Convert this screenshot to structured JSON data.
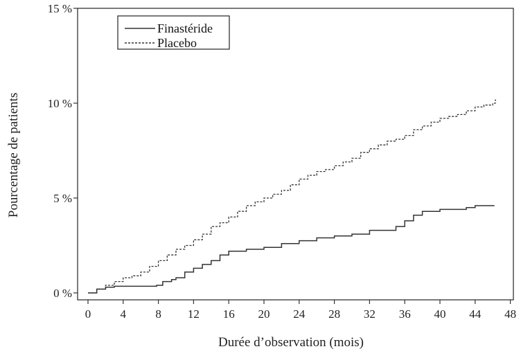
{
  "chart_data": {
    "type": "line",
    "title": "",
    "xlabel": "Durée d’observation (mois)",
    "ylabel": "Pourcentage de patients",
    "xlim": [
      0,
      48
    ],
    "ylim": [
      0,
      15
    ],
    "x_ticks": [
      "0",
      "4",
      "8",
      "12",
      "16",
      "20",
      "24",
      "28",
      "32",
      "36",
      "40",
      "44",
      "48"
    ],
    "x_tick_values": [
      0,
      4,
      8,
      12,
      16,
      20,
      24,
      28,
      32,
      36,
      40,
      44,
      48
    ],
    "y_ticks": [
      "0 %",
      "5 %",
      "10 %",
      "15 %"
    ],
    "y_tick_values": [
      0,
      5,
      10,
      15
    ],
    "grid": false,
    "legend_position": "top-left",
    "series": [
      {
        "name": "Finastéride",
        "style": "solid",
        "color": "#333333",
        "x": [
          0,
          1,
          2,
          3,
          4,
          5,
          6,
          7,
          7.8,
          8.5,
          9.5,
          10,
          11,
          12,
          13,
          14,
          15,
          16,
          17,
          18,
          20,
          22,
          24,
          26,
          28,
          30,
          32,
          34,
          35,
          36,
          37,
          38,
          40,
          42,
          43,
          44,
          46.2
        ],
        "y": [
          0,
          0.2,
          0.3,
          0.35,
          0.35,
          0.35,
          0.35,
          0.35,
          0.4,
          0.6,
          0.7,
          0.8,
          1.1,
          1.3,
          1.5,
          1.7,
          2.0,
          2.2,
          2.2,
          2.3,
          2.4,
          2.6,
          2.75,
          2.9,
          3.0,
          3.1,
          3.3,
          3.3,
          3.5,
          3.8,
          4.1,
          4.3,
          4.4,
          4.4,
          4.5,
          4.6,
          4.6
        ]
      },
      {
        "name": "Placebo",
        "style": "dashed",
        "color": "#333333",
        "x": [
          0,
          1,
          2,
          3,
          4,
          5,
          6,
          7,
          8,
          9,
          10,
          11,
          12,
          13,
          14,
          15,
          16,
          17,
          18,
          19,
          20,
          21,
          22,
          23,
          24,
          25,
          26,
          27,
          28,
          29,
          30,
          31,
          32,
          33,
          34,
          35,
          36,
          37,
          38,
          39,
          40,
          41,
          42,
          43,
          44,
          45,
          46,
          46.3
        ],
        "y": [
          0,
          0.2,
          0.4,
          0.6,
          0.8,
          0.9,
          1.1,
          1.4,
          1.7,
          2.0,
          2.3,
          2.5,
          2.8,
          3.1,
          3.5,
          3.7,
          4.0,
          4.3,
          4.6,
          4.8,
          5.0,
          5.2,
          5.4,
          5.7,
          6.0,
          6.2,
          6.4,
          6.5,
          6.7,
          6.9,
          7.1,
          7.4,
          7.6,
          7.8,
          8.0,
          8.1,
          8.3,
          8.6,
          8.8,
          9.0,
          9.2,
          9.3,
          9.4,
          9.6,
          9.8,
          9.9,
          10.0,
          10.2
        ]
      }
    ]
  }
}
